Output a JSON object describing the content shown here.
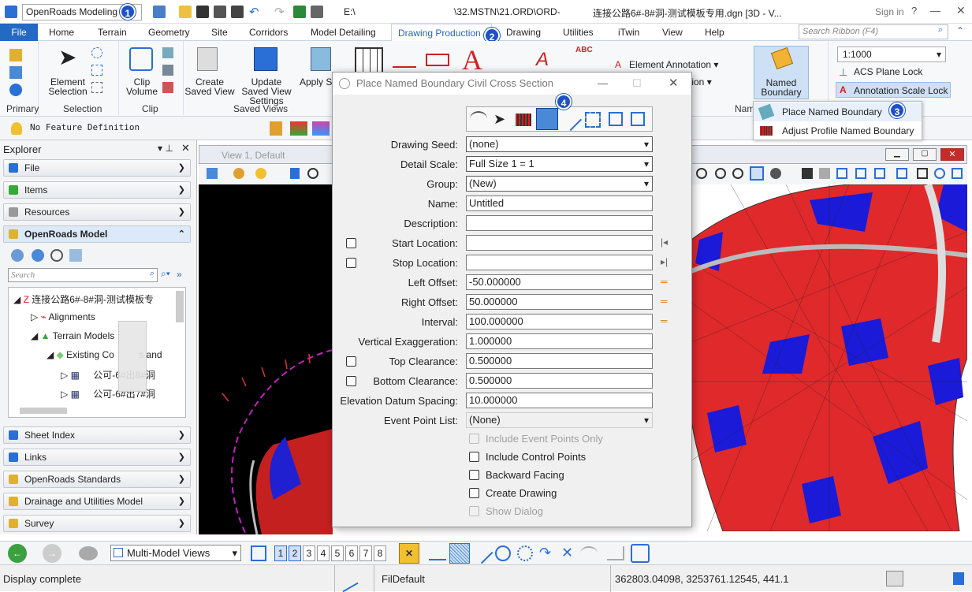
{
  "titlebar": {
    "workflow": "OpenRoads Modeling",
    "path_prefix": "E:\\",
    "path_mid": "\\32.MSTN\\21.ORD\\ORD-",
    "file_title": "连接公路6#-8#洞-测试模板专用.dgn [3D - V...",
    "sign_in": "Sign in",
    "help": "?"
  },
  "ribbon_tabs": [
    "File",
    "Home",
    "Terrain",
    "Geometry",
    "Site",
    "Corridors",
    "Model Detailing",
    "Drawing Production",
    "Drawing",
    "Utilities",
    "iTwin",
    "View",
    "Help"
  ],
  "search_ribbon_placeholder": "Search Ribbon (F4)",
  "ribbon": {
    "element_selection": "Element Selection",
    "clip_volume": "Clip Volume",
    "create_saved_view": "Create Saved View",
    "update_saved_view_settings": "Update Saved View Settings",
    "apply_saved_view": "Apply Saved Vi",
    "named_boundary": "Named Boundary",
    "element_annotation": "Element Annotation",
    "tion": "tion",
    "scale": "1:1000",
    "acs_plane_lock": "ACS Plane Lock",
    "annotation_scale_lock": "Annotation Scale Lock",
    "groups": {
      "primary": "Primary",
      "selection": "Selection",
      "clip": "Clip",
      "saved_views": "Saved Views",
      "nam": "Nam"
    }
  },
  "feature_definition": "No Feature Definition",
  "explorer": {
    "title": "Explorer",
    "sections": [
      "File",
      "Items",
      "Resources",
      "OpenRoads Model",
      "Sheet Index",
      "Links",
      "OpenRoads Standards",
      "Drainage and Utilities Model",
      "Survey"
    ],
    "search_placeholder": "Search",
    "tree": [
      {
        "label": "连接公路6#-8#洞-测试模板专"
      },
      {
        "label": "Alignments"
      },
      {
        "label": "Terrain Models"
      },
      {
        "label": "Existing Co"
      },
      {
        "label": "s and"
      },
      {
        "label": "公可-6#出8#洞"
      },
      {
        "label": "公可-6#出7#洞"
      }
    ]
  },
  "view1": {
    "title": "View 1, Default"
  },
  "dialog": {
    "title": "Place Named Boundary Civil Cross Section",
    "fields": [
      {
        "label": "Drawing Seed:",
        "value": "(none)",
        "type": "select"
      },
      {
        "label": "Detail Scale:",
        "value": "Full Size 1 = 1",
        "type": "select"
      },
      {
        "label": "Group:",
        "value": "(New)",
        "type": "select"
      },
      {
        "label": "Name:",
        "value": "Untitled",
        "type": "text"
      },
      {
        "label": "Description:",
        "value": "",
        "type": "text"
      },
      {
        "label": "Start Location:",
        "value": "",
        "type": "text"
      },
      {
        "label": "Stop Location:",
        "value": "",
        "type": "text"
      },
      {
        "label": "Left Offset:",
        "value": "-50.000000",
        "type": "text"
      },
      {
        "label": "Right Offset:",
        "value": "50.000000",
        "type": "text"
      },
      {
        "label": "Interval:",
        "value": "100.000000",
        "type": "text"
      },
      {
        "label": "Vertical Exaggeration:",
        "value": "1.000000",
        "type": "text"
      },
      {
        "label": "Top Clearance:",
        "value": "0.500000",
        "type": "text"
      },
      {
        "label": "Bottom Clearance:",
        "value": "0.500000",
        "type": "text"
      },
      {
        "label": "Elevation Datum Spacing:",
        "value": "10.000000",
        "type": "text"
      },
      {
        "label": "Event Point List:",
        "value": "(None)",
        "type": "select"
      }
    ],
    "checks": [
      {
        "label": "Include Event Points Only",
        "disabled": true
      },
      {
        "label": "Include Control Points",
        "disabled": false
      },
      {
        "label": "Backward Facing",
        "disabled": false
      },
      {
        "label": "Create Drawing",
        "disabled": false
      },
      {
        "label": "Show Dialog",
        "disabled": true
      }
    ]
  },
  "dropdown": {
    "item1": "Place Named Boundary",
    "item2": "Adjust Profile Named Boundary"
  },
  "badges": {
    "b1": "1",
    "b2": "2",
    "b3": "3",
    "b4": "4"
  },
  "bottom_toolbar": {
    "view_select": "Multi-Model Views",
    "view_buttons": [
      "1",
      "2",
      "3",
      "4",
      "5",
      "6",
      "7",
      "8"
    ]
  },
  "statusbar": {
    "message": "Display complete",
    "level": "FilDefault",
    "coords": "362803.04098, 3253761.12545, 441.1"
  },
  "colors": {
    "accent": "#2563c2",
    "filetab": "#2469c4",
    "badge": "#1e50c8",
    "terrain_red": "#e0292b",
    "terrain_blue": "#1a1ad8"
  }
}
